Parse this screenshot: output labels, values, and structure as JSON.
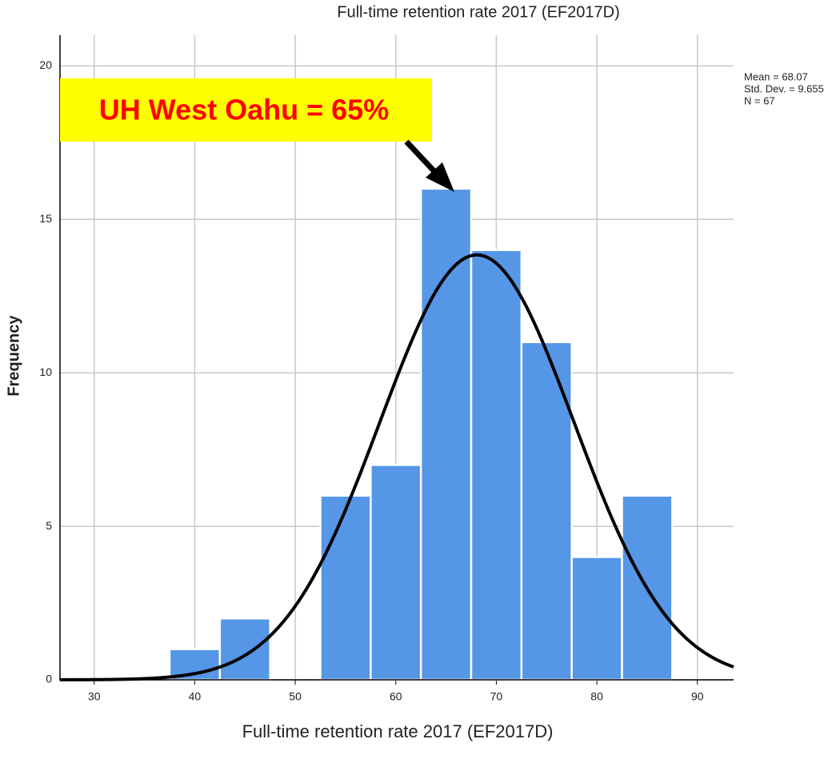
{
  "chart_data": {
    "type": "histogram",
    "title": "Full-time retention rate  2017 (EF2017D)",
    "x_label": "Full-time retention rate  2017 (EF2017D)",
    "y_label": "Frequency",
    "bins": [
      37.5,
      42.5,
      47.5,
      52.5,
      57.5,
      62.5,
      67.5,
      72.5,
      77.5,
      82.5,
      87.5
    ],
    "values": [
      1,
      2,
      0,
      6,
      7,
      16,
      14,
      11,
      4,
      6
    ],
    "color": "#5596e6",
    "xlim": [
      26.6,
      93.6
    ],
    "ylim": [
      0,
      21
    ],
    "xticks": [
      30,
      40,
      50,
      60,
      70,
      80,
      90
    ],
    "yticks": [
      0,
      5,
      10,
      15,
      20
    ],
    "grid": true,
    "normal_curve": {
      "mean": 68.07,
      "std_dev": 9.655,
      "n": 67,
      "color": "#000000"
    },
    "stats_labels": [
      "Mean = 68.07",
      "Std. Dev. = 9.655",
      "N = 67"
    ],
    "annotation": "UH West Oahu = 65%"
  }
}
